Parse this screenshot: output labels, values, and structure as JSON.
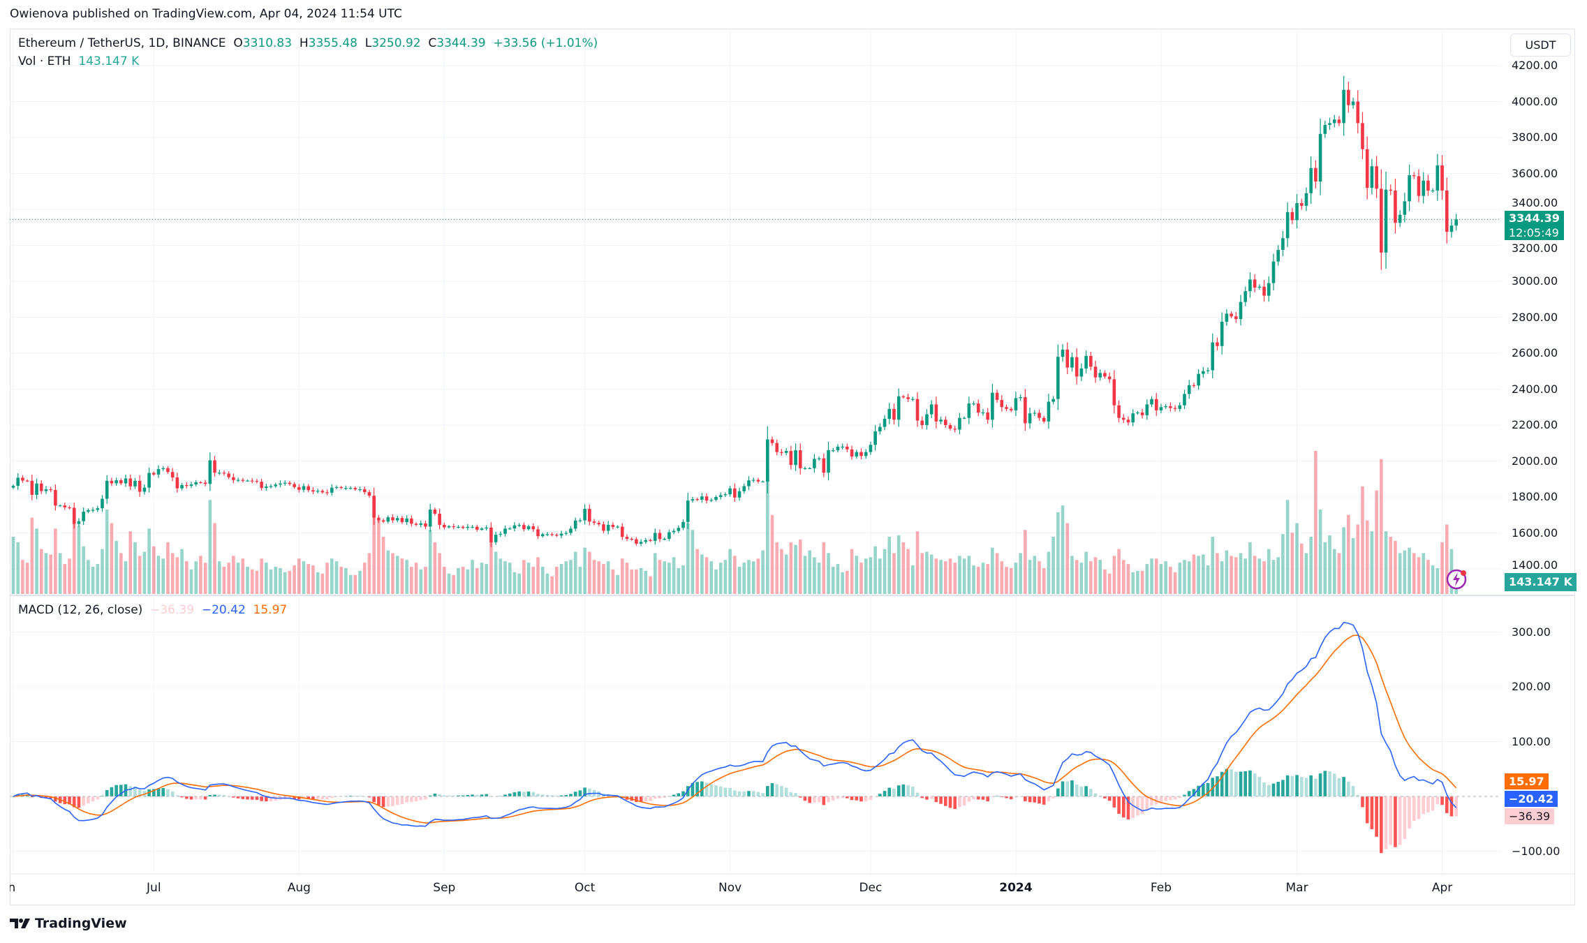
{
  "header": {
    "published": "Owienova published on TradingView.com, Apr 04, 2024 11:54 UTC"
  },
  "legend": {
    "symbol": "Ethereum / TetherUS, 1D, BINANCE",
    "o_label": "O",
    "o": "3310.83",
    "h_label": "H",
    "h": "3355.48",
    "l_label": "L",
    "l": "3250.92",
    "c_label": "C",
    "c": "3344.39",
    "change": "+33.56 (+1.01%)",
    "vol_label": "Vol · ETH",
    "vol": "143.147 K"
  },
  "macd_legend": {
    "label": "MACD (12, 26, close)",
    "hist": "−36.39",
    "macd": "−20.42",
    "signal": "15.97"
  },
  "price_axis": {
    "currency": "USDT",
    "ticks": [
      "4200.00",
      "4000.00",
      "3800.00",
      "3600.00",
      "3400.00",
      "3200.00",
      "3000.00",
      "2800.00",
      "2600.00",
      "2400.00",
      "2200.00",
      "2000.00",
      "1800.00",
      "1600.00",
      "1400.00"
    ]
  },
  "badges": {
    "price": "3344.39",
    "countdown": "12:05:49",
    "volume": "143.147 K",
    "signal": "15.97",
    "macd": "−20.42",
    "hist": "−36.39"
  },
  "macd_axis": {
    "ticks": [
      "300.00",
      "200.00",
      "100.00",
      "−100.00"
    ]
  },
  "time_axis": {
    "labels": [
      "Jun",
      "Jul",
      "Aug",
      "Sep",
      "Oct",
      "Nov",
      "Dec",
      "2024",
      "Feb",
      "Mar",
      "Apr"
    ]
  },
  "footer": {
    "brand": "TradingView"
  },
  "colors": {
    "up": "#089981",
    "down": "#f23645",
    "macd": "#2962ff",
    "signal": "#ff6d00",
    "hist_up_strong": "#26a69a",
    "hist_up_weak": "#b2dfdb",
    "hist_down_strong": "#ff5252",
    "hist_down_weak": "#ffcdd2"
  },
  "icons": {
    "logo": "tradingview-logo-icon",
    "alert": "lightning-icon"
  },
  "chart_data": {
    "type": "candlestick",
    "interval": "1D",
    "start_date": "2023-06-01",
    "end_date": "2024-04-04",
    "price_range": [
      1400,
      4200
    ],
    "macd_range": [
      -100,
      300
    ],
    "grid": true,
    "close": [
      1862,
      1907,
      1891,
      1890,
      1812,
      1875,
      1833,
      1843,
      1839,
      1752,
      1753,
      1742,
      1740,
      1650,
      1665,
      1718,
      1727,
      1728,
      1737,
      1790,
      1890,
      1876,
      1893,
      1876,
      1903,
      1859,
      1890,
      1829,
      1852,
      1934,
      1925,
      1955,
      1960,
      1939,
      1909,
      1848,
      1866,
      1862,
      1870,
      1882,
      1880,
      1873,
      2004,
      1935,
      1935,
      1930,
      1910,
      1894,
      1895,
      1890,
      1891,
      1889,
      1885,
      1850,
      1858,
      1860,
      1869,
      1875,
      1879,
      1872,
      1855,
      1840,
      1860,
      1838,
      1830,
      1834,
      1826,
      1824,
      1852,
      1855,
      1850,
      1850,
      1850,
      1842,
      1843,
      1827,
      1807,
      1685,
      1670,
      1663,
      1687,
      1670,
      1683,
      1660,
      1680,
      1651,
      1645,
      1653,
      1635,
      1730,
      1707,
      1645,
      1631,
      1637,
      1634,
      1634,
      1628,
      1634,
      1634,
      1618,
      1625,
      1630,
      1548,
      1590,
      1595,
      1624,
      1625,
      1642,
      1644,
      1621,
      1637,
      1620,
      1582,
      1593,
      1593,
      1590,
      1585,
      1596,
      1600,
      1624,
      1669,
      1670,
      1734,
      1663,
      1656,
      1648,
      1612,
      1645,
      1633,
      1635,
      1578,
      1567,
      1565,
      1540,
      1550,
      1560,
      1556,
      1600,
      1566,
      1567,
      1604,
      1611,
      1628,
      1661,
      1780,
      1788,
      1785,
      1803,
      1780,
      1784,
      1800,
      1810,
      1815,
      1848,
      1797,
      1832,
      1860,
      1892,
      1895,
      1886,
      1886,
      2120,
      2100,
      2050,
      2045,
      2056,
      1978,
      2060,
      1960,
      1960,
      1960,
      2012,
      2015,
      1935,
      2060,
      2060,
      2080,
      2080,
      2065,
      2025,
      2050,
      2028,
      2050,
      2090,
      2165,
      2190,
      2235,
      2290,
      2230,
      2360,
      2355,
      2345,
      2345,
      2225,
      2200,
      2260,
      2315,
      2220,
      2230,
      2200,
      2180,
      2175,
      2240,
      2240,
      2320,
      2320,
      2270,
      2270,
      2230,
      2380,
      2340,
      2300,
      2290,
      2282,
      2350,
      2355,
      2210,
      2265,
      2268,
      2240,
      2220,
      2330,
      2345,
      2580,
      2620,
      2520,
      2578,
      2470,
      2515,
      2585,
      2525,
      2465,
      2490,
      2470,
      2455,
      2310,
      2240,
      2230,
      2215,
      2265,
      2270,
      2255,
      2315,
      2345,
      2282,
      2300,
      2305,
      2295,
      2290,
      2310,
      2373,
      2422,
      2420,
      2485,
      2500,
      2505,
      2660,
      2640,
      2775,
      2820,
      2805,
      2790,
      2885,
      2945,
      3010,
      2965,
      2970,
      2920,
      2990,
      3110,
      3175,
      3240,
      3385,
      3340,
      3435,
      3420,
      3490,
      3630,
      3555,
      3820,
      3870,
      3880,
      3900,
      3880,
      4065,
      3980,
      4000,
      3880,
      3735,
      3520,
      3640,
      3515,
      3160,
      3510,
      3505,
      3325,
      3370,
      3445,
      3590,
      3585,
      3475,
      3560,
      3505,
      3505,
      3645,
      3505,
      3275,
      3310,
      3344.39
    ],
    "volume_k": [
      420,
      380,
      250,
      230,
      560,
      480,
      330,
      300,
      290,
      480,
      300,
      220,
      260,
      600,
      500,
      350,
      250,
      200,
      220,
      330,
      620,
      520,
      390,
      300,
      240,
      460,
      380,
      280,
      310,
      480,
      350,
      280,
      260,
      380,
      300,
      270,
      330,
      240,
      180,
      240,
      280,
      230,
      690,
      520,
      240,
      200,
      230,
      280,
      230,
      260,
      200,
      180,
      170,
      260,
      230,
      180,
      200,
      190,
      160,
      170,
      210,
      260,
      240,
      220,
      210,
      160,
      150,
      230,
      260,
      240,
      200,
      190,
      140,
      140,
      170,
      230,
      300,
      720,
      540,
      420,
      320,
      300,
      280,
      260,
      250,
      200,
      230,
      180,
      200,
      470,
      380,
      300,
      200,
      150,
      140,
      190,
      200,
      180,
      250,
      190,
      230,
      220,
      390,
      310,
      260,
      240,
      230,
      160,
      150,
      250,
      230,
      200,
      270,
      200,
      150,
      130,
      200,
      220,
      240,
      250,
      310,
      200,
      340,
      310,
      250,
      240,
      220,
      240,
      180,
      140,
      260,
      230,
      180,
      180,
      190,
      170,
      130,
      300,
      250,
      240,
      230,
      270,
      190,
      210,
      520,
      470,
      330,
      290,
      270,
      240,
      180,
      230,
      250,
      330,
      280,
      200,
      230,
      250,
      240,
      260,
      320,
      900,
      580,
      380,
      330,
      290,
      380,
      360,
      400,
      280,
      320,
      270,
      230,
      380,
      300,
      200,
      220,
      160,
      170,
      330,
      280,
      230,
      260,
      270,
      350,
      260,
      330,
      420,
      300,
      430,
      380,
      330,
      210,
      460,
      300,
      310,
      290,
      260,
      250,
      240,
      260,
      230,
      280,
      260,
      280,
      210,
      200,
      230,
      220,
      340,
      300,
      240,
      200,
      190,
      230,
      300,
      470,
      250,
      280,
      240,
      190,
      310,
      420,
      600,
      650,
      520,
      280,
      250,
      230,
      310,
      240,
      270,
      250,
      180,
      150,
      280,
      330,
      250,
      220,
      160,
      170,
      170,
      220,
      260,
      260,
      220,
      240,
      200,
      160,
      230,
      250,
      240,
      290,
      280,
      290,
      210,
      420,
      300,
      240,
      320,
      280,
      270,
      300,
      260,
      380,
      280,
      260,
      240,
      330,
      250,
      270,
      440,
      690,
      450,
      520,
      370,
      300,
      420,
      1050,
      620,
      380,
      430,
      330,
      300,
      490,
      580,
      410,
      510,
      790,
      540,
      460,
      760,
      990,
      460,
      420,
      390,
      300,
      320,
      340,
      300,
      270,
      300,
      250,
      210,
      190,
      380,
      510,
      330,
      143.147
    ],
    "macd_params": {
      "fast": 12,
      "slow": 26,
      "source": "close",
      "signal": 9
    }
  }
}
